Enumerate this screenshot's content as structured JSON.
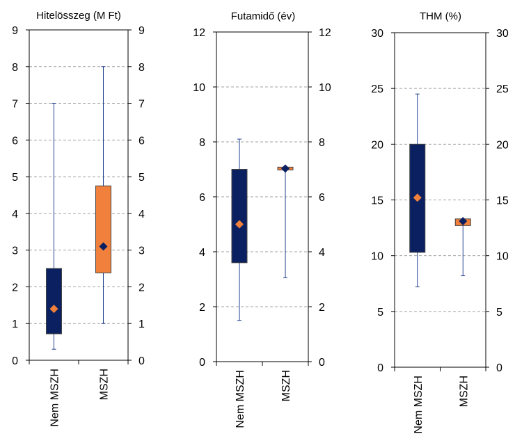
{
  "colors": {
    "nem_mszh": "#0B2060",
    "mszh": "#F0803C",
    "whisker": "#1F3F8F",
    "grid": "#A0A0A0",
    "axis": "#000000"
  },
  "chart_data": [
    {
      "type": "box",
      "title": "Hitelösszeg (M Ft)",
      "ylim": [
        0,
        9
      ],
      "ticks": [
        0,
        1,
        2,
        3,
        4,
        5,
        6,
        7,
        8,
        9
      ],
      "grid": true,
      "categories": [
        "Nem MSZH",
        "MSZH"
      ],
      "boxes": [
        {
          "category": "Nem MSZH",
          "min": 0.3,
          "q1": 0.72,
          "q3": 2.5,
          "max": 7.0,
          "mean": 1.4,
          "box_color": "#0B2060",
          "mean_color": "#F0803C"
        },
        {
          "category": "MSZH",
          "min": 1.0,
          "q1": 2.38,
          "q3": 4.75,
          "max": 8.0,
          "mean": 3.1,
          "box_color": "#F0803C",
          "mean_color": "#0B2060"
        }
      ]
    },
    {
      "type": "box",
      "title": "Futamidő (év)",
      "ylim": [
        0,
        12
      ],
      "ticks": [
        0,
        2,
        4,
        6,
        8,
        10,
        12
      ],
      "grid": true,
      "categories": [
        "Nem MSZH",
        "MSZH"
      ],
      "boxes": [
        {
          "category": "Nem MSZH",
          "min": 1.5,
          "q1": 3.6,
          "q3": 7.0,
          "max": 8.1,
          "mean": 5.0,
          "box_color": "#0B2060",
          "mean_color": "#F0803C"
        },
        {
          "category": "MSZH",
          "min": 3.05,
          "q1": 6.98,
          "q3": 7.08,
          "max": 7.08,
          "mean": 7.03,
          "box_color": "#F0803C",
          "mean_color": "#0B2060"
        }
      ]
    },
    {
      "type": "box",
      "title": "THM (%)",
      "ylim": [
        0,
        30
      ],
      "ticks": [
        0,
        5,
        10,
        15,
        20,
        25,
        30
      ],
      "grid": true,
      "categories": [
        "Nem MSZH",
        "MSZH"
      ],
      "boxes": [
        {
          "category": "Nem MSZH",
          "min": 7.2,
          "q1": 10.3,
          "q3": 20.0,
          "max": 24.5,
          "mean": 15.2,
          "box_color": "#0B2060",
          "mean_color": "#F0803C"
        },
        {
          "category": "MSZH",
          "min": 8.2,
          "q1": 12.7,
          "q3": 13.3,
          "max": 13.3,
          "mean": 13.1,
          "box_color": "#F0803C",
          "mean_color": "#0B2060"
        }
      ]
    }
  ]
}
